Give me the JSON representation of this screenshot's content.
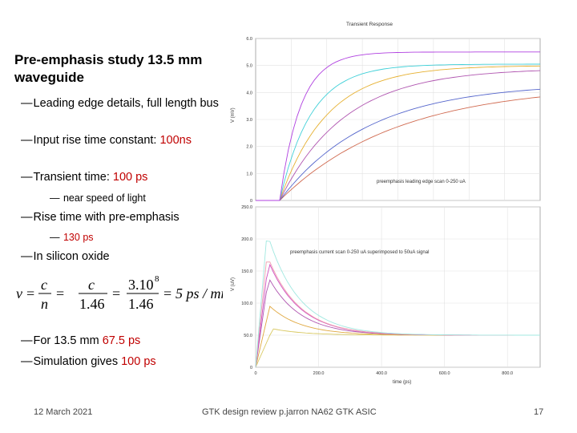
{
  "slide": {
    "title": "Pre-emphasis study 13.5 mm waveguide",
    "bullets": {
      "b1": "Leading edge details, full length bus",
      "b2_a": "Input rise time constant: ",
      "b2_b": "100ns",
      "b3_a": "Transient time: ",
      "b3_b": "100 ps",
      "s1": "near speed of light",
      "b4": "Rise time with pre-emphasis",
      "s2": "130 ps",
      "b5": "In silicon oxide",
      "b6_a": "For 13.5 mm ",
      "b6_b": "67.5 ps",
      "b7_a": "Simulation gives ",
      "b7_b": "100 ps"
    },
    "annotation": "100ps",
    "footer": {
      "date": "12 March 2021",
      "center": "GTK design review p.jarron NA62 GTK ASIC",
      "page": "17"
    }
  },
  "chart_data": [
    {
      "type": "line",
      "title": "Transient Response",
      "ylabel": "V (mV)",
      "annotation": "preemphasis leading edge scan 0-250 uA",
      "ylim": [
        0,
        6.0
      ],
      "yticks": [
        "0",
        "1.0",
        "2.0",
        "3.0",
        "4.0",
        "5.0",
        "6.0"
      ],
      "series_colors": [
        "#d06a50",
        "#5566cc",
        "#b055b0",
        "#e6b030",
        "#40d0d8",
        "#b040e0"
      ]
    },
    {
      "type": "line",
      "ylabel": "V (uV)",
      "xlabel": "time (ps)",
      "annotation": "preemphasis current scan 0-250 uA superimposed to 50uA signal",
      "ylim": [
        0,
        250
      ],
      "xlim": [
        0,
        800
      ],
      "yticks": [
        "0",
        "50.0",
        "100.0",
        "150.0",
        "200.0",
        "250.0"
      ],
      "xticks": [
        "0",
        "200.0",
        "400.0",
        "600.0",
        "800.0"
      ],
      "series_colors": [
        "#d8c860",
        "#e0a840",
        "#b055b0",
        "#d050c0",
        "#f0a0b0",
        "#a0e8e0"
      ]
    }
  ],
  "colors": {
    "accent": "#c00000",
    "arrow": "#b03030"
  }
}
